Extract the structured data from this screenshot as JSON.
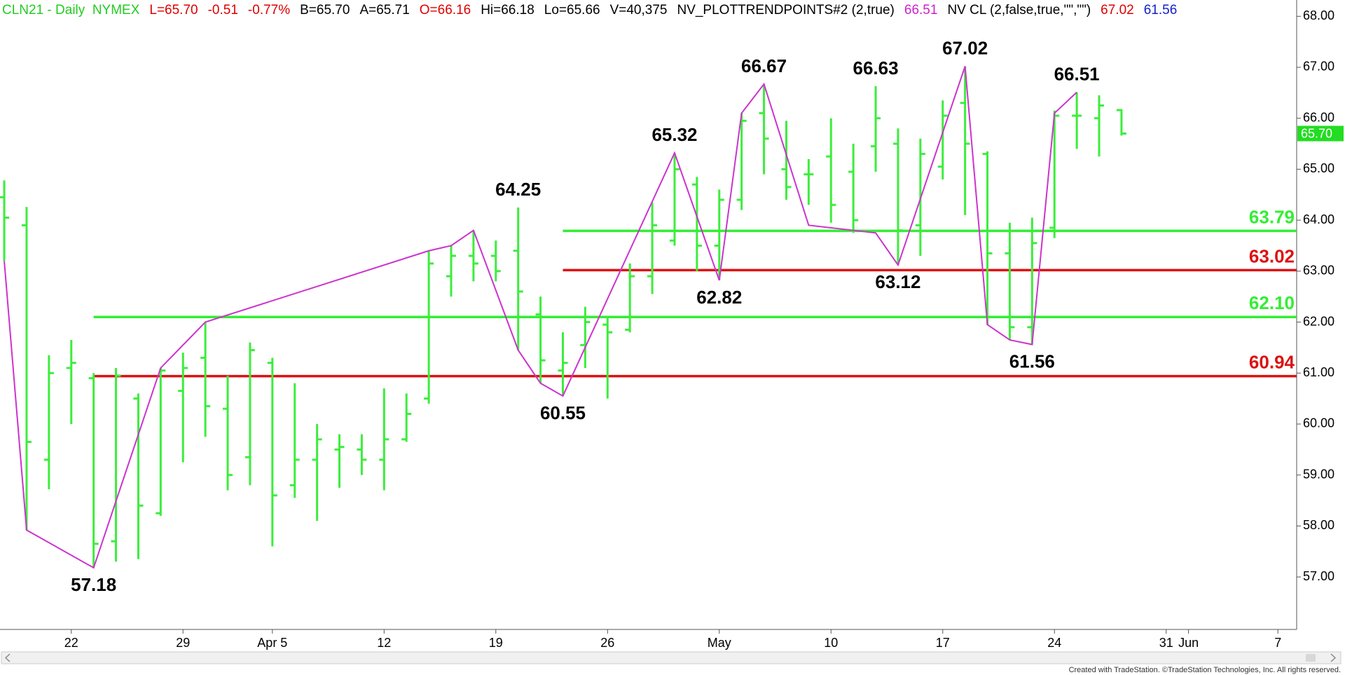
{
  "header": [
    {
      "text": "CLN21 - Daily  NYMEX",
      "color": "#22cc22"
    },
    {
      "text": "L=65.70",
      "color": "#dd0000"
    },
    {
      "text": "-0.51",
      "color": "#dd0000"
    },
    {
      "text": "-0.77%",
      "color": "#dd0000"
    },
    {
      "text": "B=65.70",
      "color": "#000000"
    },
    {
      "text": "A=65.71",
      "color": "#000000"
    },
    {
      "text": "O=66.16",
      "color": "#dd0000"
    },
    {
      "text": "Hi=66.18",
      "color": "#000000"
    },
    {
      "text": "Lo=65.66",
      "color": "#000000"
    },
    {
      "text": "V=40,375",
      "color": "#000000"
    },
    {
      "text": "NV_PLOTTRENDPOINTS#2 (2,true)",
      "color": "#000000"
    },
    {
      "text": "66.51",
      "color": "#cc22cc"
    },
    {
      "text": "NV CL (2,false,true,\"\",\"\")",
      "color": "#000000"
    },
    {
      "text": "67.02",
      "color": "#dd0000"
    },
    {
      "text": "61.56",
      "color": "#1122cc"
    }
  ],
  "chart_data": {
    "type": "ohlc",
    "color": "#3ced3c",
    "categories": [
      null,
      null,
      null,
      "22",
      null,
      null,
      null,
      null,
      "29",
      null,
      null,
      null,
      "Apr 5",
      null,
      null,
      null,
      null,
      "12",
      null,
      null,
      null,
      null,
      "19",
      null,
      null,
      null,
      null,
      "26",
      null,
      null,
      null,
      null,
      "May",
      null,
      null,
      null,
      null,
      "10",
      null,
      null,
      null,
      null,
      "17",
      null,
      null,
      null,
      null,
      "24",
      null,
      null,
      null,
      null,
      "31",
      "Jun",
      null,
      null,
      null,
      "7"
    ],
    "open": [
      64.45,
      63.9,
      59.3,
      61.1,
      60.9,
      57.7,
      60.5,
      58.25,
      60.65,
      61.3,
      60.3,
      59.35,
      61.2,
      58.8,
      59.3,
      59.5,
      59.5,
      59.3,
      59.7,
      60.5,
      62.9,
      63.3,
      63.3,
      63.4,
      62.15,
      61.05,
      61.55,
      61.95,
      61.85,
      62.9,
      63.6,
      64.7,
      63.5,
      64.4,
      66.1,
      65.0,
      64.9,
      65.25,
      64.95,
      65.45,
      65.5,
      63.9,
      65.05,
      66.3,
      65.3,
      63.35,
      61.9,
      63.85,
      66.05,
      66.0,
      66.16,
      null,
      null,
      null,
      null,
      null,
      null,
      null
    ],
    "high": [
      64.78,
      64.26,
      61.35,
      61.65,
      61.0,
      61.1,
      60.6,
      61.1,
      61.4,
      62.0,
      60.95,
      61.6,
      61.3,
      60.8,
      60.0,
      59.8,
      59.8,
      60.7,
      60.6,
      63.4,
      63.5,
      63.8,
      63.6,
      64.25,
      62.5,
      61.8,
      62.3,
      62.1,
      63.15,
      64.35,
      65.32,
      64.85,
      64.6,
      66.1,
      66.67,
      65.95,
      65.2,
      66.0,
      65.5,
      66.63,
      65.8,
      65.6,
      66.35,
      67.02,
      65.35,
      63.95,
      64.05,
      66.15,
      66.51,
      66.45,
      66.18,
      null,
      null,
      null,
      null,
      null,
      null,
      null
    ],
    "low": [
      63.2,
      57.92,
      58.72,
      60.0,
      57.18,
      57.3,
      57.35,
      58.2,
      59.25,
      59.75,
      58.7,
      58.8,
      57.6,
      58.55,
      58.1,
      58.75,
      59.0,
      58.7,
      59.65,
      60.4,
      62.5,
      62.8,
      62.8,
      61.45,
      60.8,
      60.55,
      61.1,
      60.5,
      61.8,
      62.55,
      63.5,
      63.0,
      62.82,
      64.2,
      64.9,
      64.4,
      64.3,
      63.95,
      63.75,
      64.95,
      63.12,
      63.3,
      64.8,
      64.1,
      61.95,
      61.65,
      61.56,
      63.65,
      65.4,
      65.25,
      65.66,
      null,
      null,
      null,
      null,
      null,
      null,
      null
    ],
    "close": [
      64.05,
      59.65,
      61.0,
      61.2,
      57.65,
      60.95,
      58.4,
      61.05,
      61.1,
      60.35,
      59.0,
      61.45,
      58.6,
      59.3,
      59.7,
      59.55,
      59.3,
      59.7,
      60.2,
      63.15,
      63.3,
      63.15,
      63.0,
      62.6,
      61.25,
      61.2,
      62.0,
      61.8,
      62.9,
      63.9,
      65.0,
      63.5,
      64.4,
      65.95,
      65.6,
      64.65,
      64.9,
      64.3,
      64.0,
      66.0,
      63.8,
      65.3,
      66.05,
      65.5,
      63.35,
      61.9,
      63.55,
      66.05,
      66.05,
      66.25,
      65.7,
      null,
      null,
      null,
      null,
      null,
      null,
      null
    ],
    "trend": {
      "color": "#cc33cc",
      "x": [
        0,
        1,
        4,
        7,
        9,
        19,
        20,
        21,
        23,
        24,
        25,
        30,
        32,
        33,
        34,
        36,
        39,
        40,
        43,
        44,
        45,
        46,
        47,
        48
      ],
      "values": [
        63.2,
        57.92,
        57.18,
        61.1,
        62.0,
        63.4,
        63.5,
        63.8,
        61.45,
        60.8,
        60.55,
        65.32,
        62.82,
        66.1,
        66.67,
        63.9,
        63.75,
        63.12,
        67.02,
        61.95,
        61.65,
        61.56,
        66.1,
        66.51
      ]
    },
    "pivots": {
      "x": [
        4,
        23,
        25,
        30,
        32,
        34,
        39,
        40,
        43,
        46,
        48
      ],
      "values": [
        57.18,
        64.25,
        60.55,
        65.32,
        62.82,
        66.67,
        66.63,
        63.12,
        67.02,
        61.56,
        66.51
      ]
    },
    "hlines": [
      {
        "value": 63.79,
        "color": "#33ee33",
        "from": 25
      },
      {
        "value": 63.02,
        "color": "#dd1111",
        "from": 25
      },
      {
        "value": 62.1,
        "value_label": "62.10",
        "color": "#33ee33",
        "from": 4
      },
      {
        "value": 60.94,
        "color": "#dd1111",
        "from": 4
      }
    ],
    "last": {
      "value": 65.7,
      "label": "65.70",
      "color": "#22dd22"
    },
    "xlim": [
      -0.19,
      57.84
    ],
    "ylim": [
      55.97,
      68.32
    ],
    "yticks": [
      {
        "value": 57,
        "label": "57.00"
      },
      {
        "value": 58,
        "label": "58.00"
      },
      {
        "value": 59,
        "label": "59.00"
      },
      {
        "value": 60,
        "label": "60.00"
      },
      {
        "value": 61,
        "label": "61.00"
      },
      {
        "value": 62,
        "label": "62.00"
      },
      {
        "value": 63,
        "label": "63.00"
      },
      {
        "value": 64,
        "label": "64.00"
      },
      {
        "value": 65,
        "label": "65.00"
      },
      {
        "value": 66,
        "label": "66.00"
      },
      {
        "value": 67,
        "label": "67.00"
      },
      {
        "value": 68,
        "label": "68.00"
      }
    ]
  },
  "footer": "Created with TradeStation. ©TradeStation Technologies, Inc. All rights reserved."
}
